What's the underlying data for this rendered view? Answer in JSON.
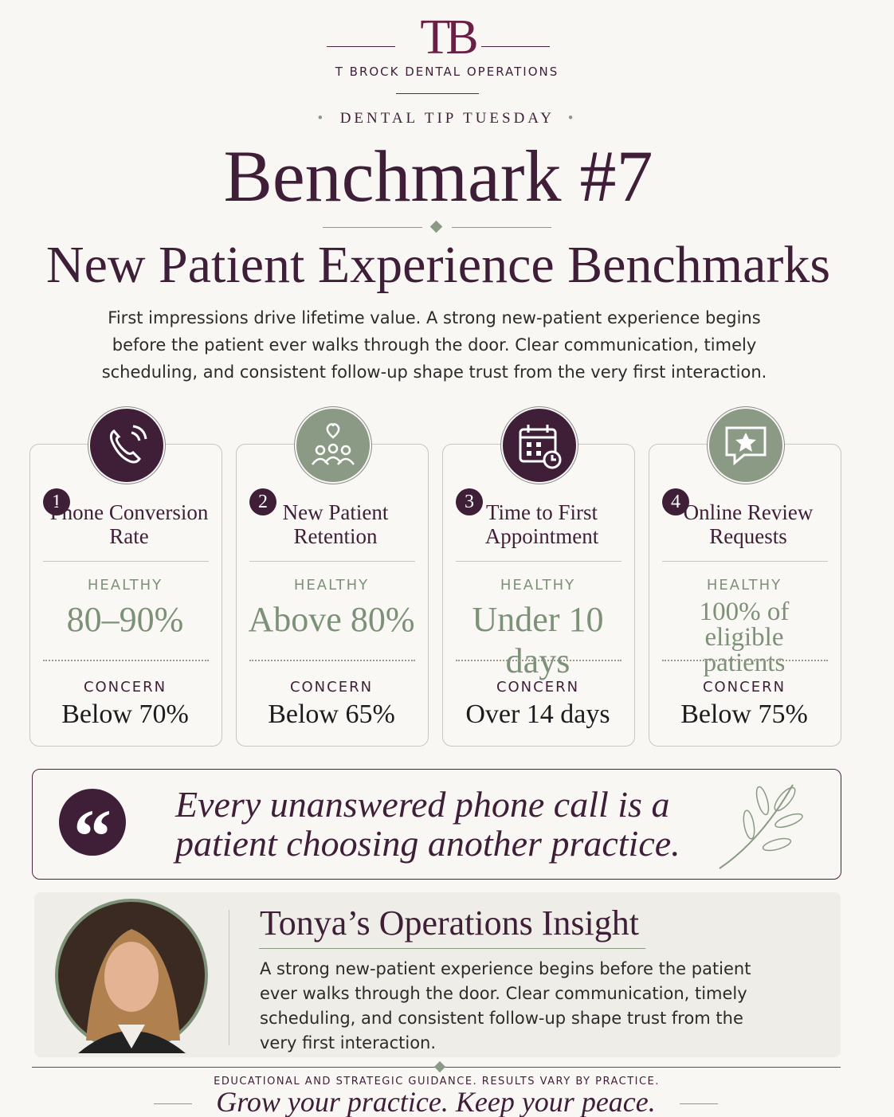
{
  "header": {
    "logo": "TB",
    "brand": "T BROCK DENTAL OPERATIONS",
    "eyebrow": "DENTAL TIP TUESDAY",
    "title": "Benchmark #7",
    "subtitle": "New Patient Experience Benchmarks",
    "intro": "First impressions drive lifetime value. A strong new-patient experience begins before the patient ever walks through the door. Clear communication, timely scheduling, and consistent follow-up shape trust from the very first interaction."
  },
  "cards": [
    {
      "number": "1",
      "title": "Phone Conversion Rate",
      "healthy_label": "HEALTHY",
      "healthy": "80–90%",
      "concern_label": "CONCERN",
      "concern": "Below 70%"
    },
    {
      "number": "2",
      "title": "New Patient Retention",
      "healthy_label": "HEALTHY",
      "healthy": "Above 80%",
      "concern_label": "CONCERN",
      "concern": "Below 65%"
    },
    {
      "number": "3",
      "title": "Time to First Appointment",
      "healthy_label": "HEALTHY",
      "healthy": "Under 10 days",
      "concern_label": "CONCERN",
      "concern": "Over 14 days"
    },
    {
      "number": "4",
      "title": "Online Review Requests",
      "healthy_label": "HEALTHY",
      "healthy": "100% of eligible patients",
      "concern_label": "CONCERN",
      "concern": "Below 75%"
    }
  ],
  "quote": {
    "text": "Every unanswered phone call is a patient choosing another practice."
  },
  "insight": {
    "title": "Tonya’s Operations Insight",
    "body": "A strong new-patient experience begins before the patient ever walks through the door. Clear communication, timely scheduling, and consistent follow-up shape trust from the very first interaction."
  },
  "footer": {
    "disclaimer": "EDUCATIONAL AND STRATEGIC GUIDANCE. RESULTS VARY BY PRACTICE.",
    "tagline": "Grow your practice. Keep your peace."
  }
}
